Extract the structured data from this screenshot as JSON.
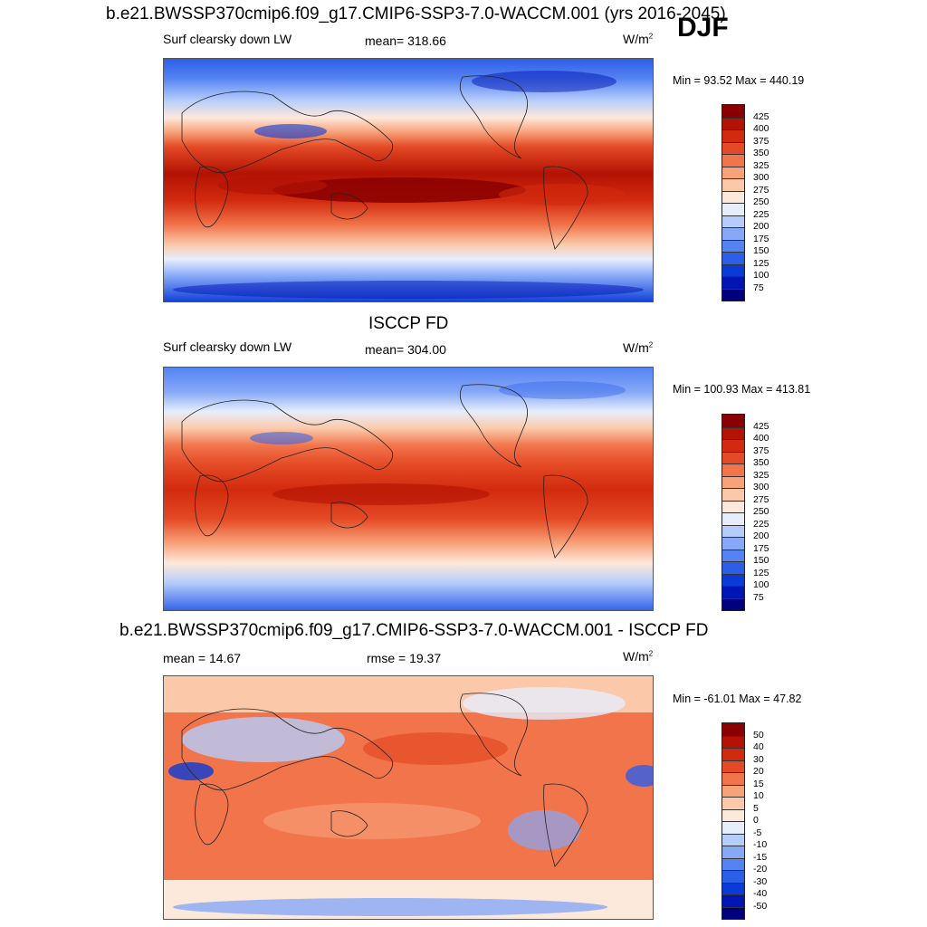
{
  "season": "DJF",
  "panels": [
    {
      "title": "b.e21.BWSSP370cmip6.f09_g17.CMIP6-SSP3-7.0-WACCM.001 (yrs 2016-2045)",
      "left_label": "Surf clearsky down LW",
      "center_label": "mean= 318.66",
      "units": "W/m",
      "units_sup": "2",
      "minmax": "Min =  93.52 Max = 440.19"
    },
    {
      "title": "ISCCP FD",
      "left_label": "Surf clearsky down LW",
      "center_label": "mean= 304.00",
      "units": "W/m",
      "units_sup": "2",
      "minmax": "Min = 100.93 Max = 413.81"
    },
    {
      "title": "b.e21.BWSSP370cmip6.f09_g17.CMIP6-SSP3-7.0-WACCM.001 - ISCCP FD",
      "left_label": "mean =  14.67",
      "center_label": "rmse =  19.37",
      "units": "W/m",
      "units_sup": "2",
      "minmax": "Min = -61.01 Max =  47.82"
    }
  ],
  "chart_data": [
    {
      "type": "heatmap",
      "title": "b.e21.BWSSP370cmip6.f09_g17.CMIP6-SSP3-7.0-WACCM.001 (yrs 2016-2045)",
      "variable": "Surf clearsky down LW",
      "mean": 318.66,
      "min": 93.52,
      "max": 440.19,
      "units": "W/m2",
      "levels": [
        75,
        100,
        125,
        150,
        175,
        200,
        225,
        250,
        275,
        300,
        325,
        350,
        375,
        400,
        425
      ],
      "colors": [
        "#00007f",
        "#0016b4",
        "#0b3bd6",
        "#2d5ee8",
        "#5583f2",
        "#86a8f7",
        "#b6cdfb",
        "#e6eefc",
        "#fde9dc",
        "#fbc9a9",
        "#f8a279",
        "#f1744b",
        "#e44a25",
        "#d22a0e",
        "#b31204",
        "#8a0000"
      ]
    },
    {
      "type": "heatmap",
      "title": "ISCCP FD",
      "variable": "Surf clearsky down LW",
      "mean": 304.0,
      "min": 100.93,
      "max": 413.81,
      "units": "W/m2",
      "levels": [
        75,
        100,
        125,
        150,
        175,
        200,
        225,
        250,
        275,
        300,
        325,
        350,
        375,
        400,
        425
      ],
      "colors": [
        "#00007f",
        "#0016b4",
        "#0b3bd6",
        "#2d5ee8",
        "#5583f2",
        "#86a8f7",
        "#b6cdfb",
        "#e6eefc",
        "#fde9dc",
        "#fbc9a9",
        "#f8a279",
        "#f1744b",
        "#e44a25",
        "#d22a0e",
        "#b31204",
        "#8a0000"
      ]
    },
    {
      "type": "heatmap",
      "title": "b.e21.BWSSP370cmip6.f09_g17.CMIP6-SSP3-7.0-WACCM.001 - ISCCP FD",
      "mean": 14.67,
      "rmse": 19.37,
      "min": -61.01,
      "max": 47.82,
      "units": "W/m2",
      "levels": [
        -50,
        -40,
        -30,
        -20,
        -15,
        -10,
        -5,
        0,
        5,
        10,
        15,
        20,
        30,
        40,
        50
      ],
      "colors": [
        "#00007f",
        "#0016b4",
        "#0b3bd6",
        "#2d5ee8",
        "#5583f2",
        "#86a8f7",
        "#b6cdfb",
        "#e6eefc",
        "#fde9dc",
        "#fbc9a9",
        "#f8a279",
        "#f1744b",
        "#e44a25",
        "#d22a0e",
        "#b31204",
        "#8a0000"
      ]
    }
  ]
}
